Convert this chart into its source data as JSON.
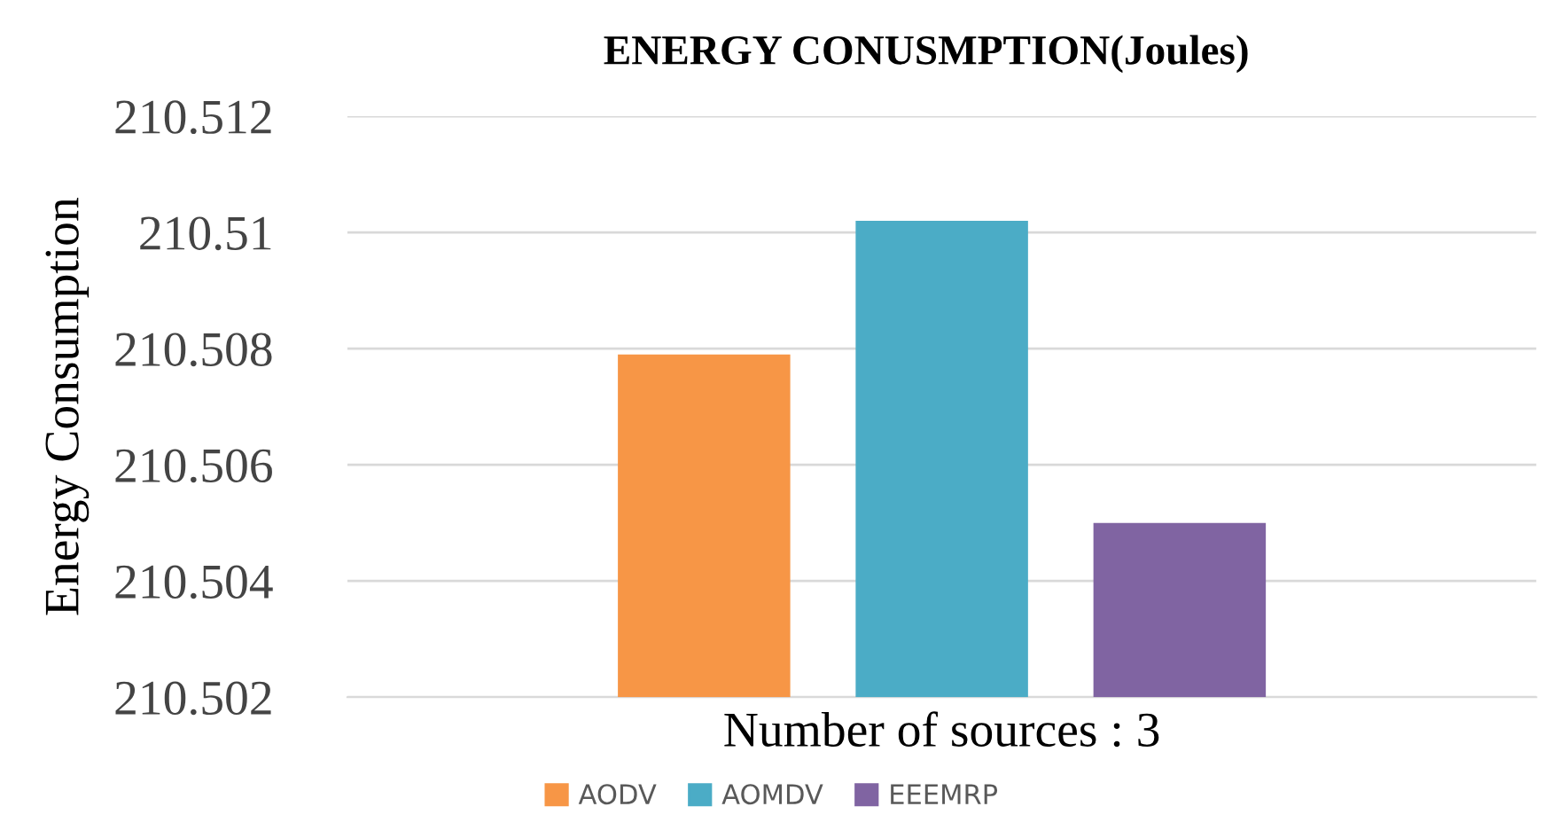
{
  "chart_data": {
    "type": "bar",
    "title": "ENERGY CONUSMPTION(Joules)",
    "ylabel": "Energy Consumption",
    "categories": [
      "Number of sources : 3"
    ],
    "series": [
      {
        "name": "AODV",
        "color": "#f79646",
        "values": [
          210.5079
        ]
      },
      {
        "name": "AOMDV",
        "color": "#4bacc6",
        "values": [
          210.5102
        ]
      },
      {
        "name": "EEEMRP",
        "color": "#8064a2",
        "values": [
          210.505
        ]
      }
    ],
    "ylim": [
      210.502,
      210.512
    ],
    "yticks": [
      {
        "value": 210.502,
        "label": "210.502"
      },
      {
        "value": 210.504,
        "label": "210.504"
      },
      {
        "value": 210.506,
        "label": "210.506"
      },
      {
        "value": 210.508,
        "label": "210.508"
      },
      {
        "value": 210.51,
        "label": "210.51"
      },
      {
        "value": 210.512,
        "label": "210.512"
      }
    ],
    "grid": "y",
    "legend": "bottom"
  }
}
